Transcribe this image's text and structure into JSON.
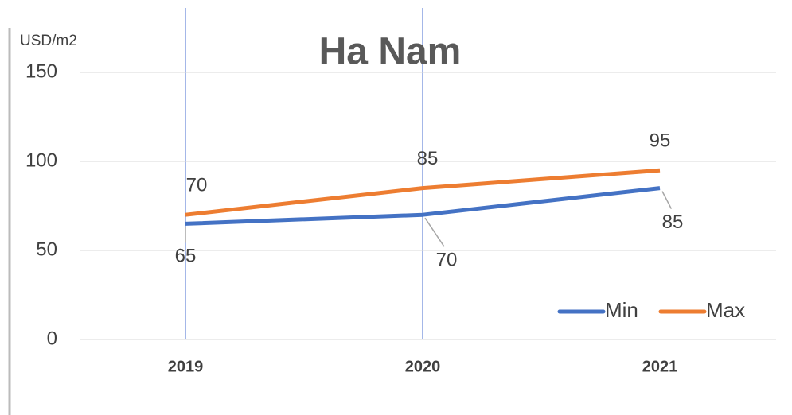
{
  "chart_data": {
    "type": "line",
    "title": "Ha Nam",
    "y_label": "USD/m2",
    "categories": [
      "2019",
      "2020",
      "2021"
    ],
    "series": [
      {
        "name": "Min",
        "color": "#4472c4",
        "values": [
          65,
          70,
          85
        ]
      },
      {
        "name": "Max",
        "color": "#ed7d31",
        "values": [
          70,
          85,
          95
        ]
      }
    ],
    "ylim": [
      0,
      150
    ],
    "yticks": [
      0,
      50,
      100,
      150
    ],
    "grid": true,
    "legend": "bottom-right"
  }
}
